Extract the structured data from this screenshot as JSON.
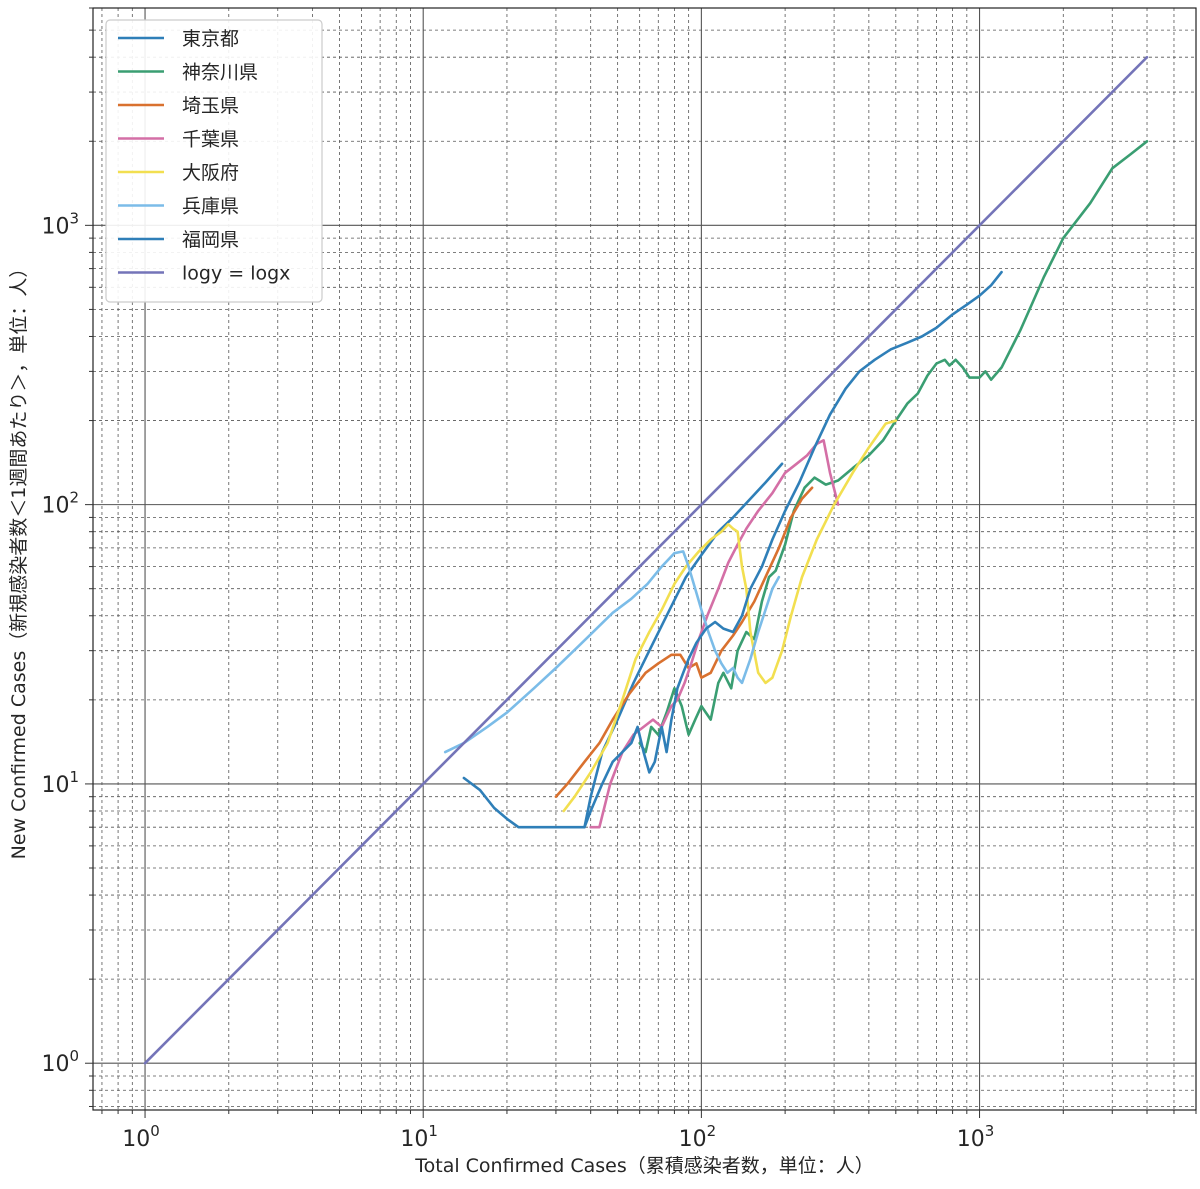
{
  "chart_data": {
    "type": "line",
    "title": "",
    "xlabel": "Total Confirmed Cases（累積感染者数，単位：人）",
    "ylabel": "New Confirmed Cases（新規感染者数＜1週間あたり＞，単位：人）",
    "xscale": "log",
    "yscale": "log",
    "xlim": [
      0.65,
      6000
    ],
    "ylim": [
      0.68,
      6000
    ],
    "grid": true,
    "legend_position": "upper-left",
    "x_ticks": [
      {
        "base": "10",
        "exp": "0",
        "value": 1
      },
      {
        "base": "10",
        "exp": "1",
        "value": 10
      },
      {
        "base": "10",
        "exp": "2",
        "value": 100
      },
      {
        "base": "10",
        "exp": "3",
        "value": 1000
      }
    ],
    "y_ticks": [
      {
        "base": "10",
        "exp": "0",
        "value": 1
      },
      {
        "base": "10",
        "exp": "1",
        "value": 10
      },
      {
        "base": "10",
        "exp": "2",
        "value": 100
      },
      {
        "base": "10",
        "exp": "3",
        "value": 1000
      }
    ],
    "series": [
      {
        "name": "東京都",
        "color": "#2f7fb8",
        "points": [
          [
            38,
            7
          ],
          [
            40,
            9
          ],
          [
            44,
            13
          ],
          [
            50,
            17
          ],
          [
            57,
            23
          ],
          [
            65,
            30
          ],
          [
            75,
            40
          ],
          [
            88,
            55
          ],
          [
            100,
            66
          ],
          [
            115,
            80
          ],
          [
            130,
            90
          ],
          [
            150,
            105
          ],
          [
            170,
            120
          ],
          [
            195,
            140
          ]
        ]
      },
      {
        "name": "神奈川県",
        "color": "#3a9e72",
        "points": [
          [
            60,
            14
          ],
          [
            63,
            13
          ],
          [
            66,
            16
          ],
          [
            70,
            15
          ],
          [
            75,
            18
          ],
          [
            80,
            22
          ],
          [
            85,
            19
          ],
          [
            90,
            15
          ],
          [
            95,
            17
          ],
          [
            100,
            19
          ],
          [
            108,
            17
          ],
          [
            115,
            23
          ],
          [
            120,
            25
          ],
          [
            128,
            22
          ],
          [
            135,
            30
          ],
          [
            145,
            35
          ],
          [
            155,
            33
          ],
          [
            165,
            45
          ],
          [
            175,
            55
          ],
          [
            185,
            58
          ],
          [
            200,
            72
          ],
          [
            215,
            95
          ],
          [
            235,
            115
          ],
          [
            255,
            125
          ],
          [
            280,
            118
          ],
          [
            310,
            122
          ],
          [
            350,
            135
          ],
          [
            400,
            150
          ],
          [
            450,
            170
          ],
          [
            500,
            200
          ],
          [
            550,
            230
          ],
          [
            600,
            250
          ],
          [
            650,
            290
          ],
          [
            700,
            320
          ],
          [
            750,
            330
          ],
          [
            780,
            315
          ],
          [
            820,
            330
          ],
          [
            870,
            310
          ],
          [
            920,
            285
          ],
          [
            1000,
            285
          ],
          [
            1050,
            300
          ],
          [
            1100,
            280
          ],
          [
            1200,
            310
          ],
          [
            1400,
            420
          ],
          [
            1700,
            650
          ],
          [
            2000,
            900
          ],
          [
            2500,
            1200
          ],
          [
            3000,
            1600
          ],
          [
            3500,
            1800
          ],
          [
            4000,
            2000
          ]
        ]
      },
      {
        "name": "埼玉県",
        "color": "#d9712f",
        "points": [
          [
            30,
            9
          ],
          [
            33,
            10
          ],
          [
            38,
            12
          ],
          [
            43,
            14
          ],
          [
            48,
            17
          ],
          [
            55,
            21
          ],
          [
            63,
            25
          ],
          [
            70,
            27
          ],
          [
            78,
            29
          ],
          [
            84,
            29
          ],
          [
            90,
            26
          ],
          [
            96,
            27
          ],
          [
            100,
            24
          ],
          [
            108,
            25
          ],
          [
            118,
            30
          ],
          [
            130,
            34
          ],
          [
            140,
            38
          ],
          [
            155,
            45
          ],
          [
            170,
            55
          ],
          [
            190,
            70
          ],
          [
            210,
            90
          ],
          [
            230,
            105
          ],
          [
            250,
            115
          ]
        ]
      },
      {
        "name": "千葉県",
        "color": "#d46fa6",
        "points": [
          [
            40,
            7
          ],
          [
            43,
            7
          ],
          [
            47,
            10
          ],
          [
            52,
            13
          ],
          [
            57,
            15
          ],
          [
            62,
            16
          ],
          [
            67,
            17
          ],
          [
            72,
            16
          ],
          [
            78,
            19
          ],
          [
            82,
            20
          ],
          [
            87,
            23
          ],
          [
            92,
            27
          ],
          [
            98,
            33
          ],
          [
            105,
            40
          ],
          [
            115,
            50
          ],
          [
            125,
            62
          ],
          [
            135,
            72
          ],
          [
            145,
            82
          ],
          [
            160,
            95
          ],
          [
            180,
            110
          ],
          [
            200,
            130
          ],
          [
            220,
            140
          ],
          [
            240,
            150
          ],
          [
            260,
            165
          ],
          [
            275,
            170
          ],
          [
            290,
            130
          ],
          [
            310,
            100
          ]
        ]
      },
      {
        "name": "大阪府",
        "color": "#f2df50",
        "points": [
          [
            32,
            8
          ],
          [
            35,
            9
          ],
          [
            40,
            11
          ],
          [
            46,
            14
          ],
          [
            52,
            20
          ],
          [
            58,
            28
          ],
          [
            65,
            35
          ],
          [
            72,
            42
          ],
          [
            80,
            52
          ],
          [
            88,
            60
          ],
          [
            98,
            68
          ],
          [
            108,
            75
          ],
          [
            118,
            80
          ],
          [
            125,
            85
          ],
          [
            130,
            82
          ],
          [
            135,
            80
          ],
          [
            140,
            60
          ],
          [
            145,
            50
          ],
          [
            150,
            35
          ],
          [
            160,
            25
          ],
          [
            170,
            23
          ],
          [
            180,
            24
          ],
          [
            195,
            30
          ],
          [
            210,
            40
          ],
          [
            230,
            55
          ],
          [
            260,
            75
          ],
          [
            300,
            100
          ],
          [
            350,
            130
          ],
          [
            400,
            160
          ],
          [
            460,
            195
          ],
          [
            500,
            200
          ]
        ]
      },
      {
        "name": "兵庫県",
        "color": "#7bbce8",
        "points": [
          [
            12,
            13
          ],
          [
            14,
            14
          ],
          [
            17,
            16
          ],
          [
            20,
            18
          ],
          [
            25,
            22
          ],
          [
            30,
            26
          ],
          [
            36,
            31
          ],
          [
            42,
            36
          ],
          [
            48,
            41
          ],
          [
            56,
            46
          ],
          [
            64,
            52
          ],
          [
            72,
            60
          ],
          [
            80,
            67
          ],
          [
            86,
            68
          ],
          [
            90,
            60
          ],
          [
            95,
            50
          ],
          [
            100,
            42
          ],
          [
            106,
            35
          ],
          [
            112,
            30
          ],
          [
            118,
            27
          ],
          [
            124,
            25
          ],
          [
            130,
            26
          ],
          [
            135,
            24
          ],
          [
            140,
            23
          ],
          [
            150,
            28
          ],
          [
            160,
            35
          ],
          [
            170,
            42
          ],
          [
            180,
            50
          ],
          [
            190,
            55
          ]
        ]
      },
      {
        "name": "福岡県",
        "color": "#2f7fb8",
        "points": [
          [
            14,
            10.5
          ],
          [
            16,
            9.5
          ],
          [
            18,
            8.2
          ],
          [
            20,
            7.5
          ],
          [
            22,
            7
          ],
          [
            25,
            7
          ],
          [
            30,
            7
          ],
          [
            35,
            7
          ],
          [
            38,
            7
          ],
          [
            40,
            8
          ],
          [
            44,
            10
          ],
          [
            48,
            12
          ],
          [
            52,
            13
          ],
          [
            56,
            14
          ],
          [
            59,
            16
          ],
          [
            62,
            13
          ],
          [
            65,
            11
          ],
          [
            68,
            12
          ],
          [
            72,
            16
          ],
          [
            75,
            13
          ],
          [
            78,
            17
          ],
          [
            82,
            22
          ],
          [
            86,
            25
          ],
          [
            90,
            28
          ],
          [
            96,
            32
          ],
          [
            104,
            36
          ],
          [
            112,
            38
          ],
          [
            120,
            36
          ],
          [
            130,
            35
          ],
          [
            140,
            40
          ],
          [
            150,
            50
          ],
          [
            165,
            60
          ],
          [
            180,
            75
          ],
          [
            200,
            95
          ],
          [
            225,
            120
          ],
          [
            255,
            160
          ],
          [
            290,
            210
          ],
          [
            330,
            260
          ],
          [
            370,
            300
          ],
          [
            420,
            330
          ],
          [
            480,
            360
          ],
          [
            550,
            380
          ],
          [
            620,
            400
          ],
          [
            700,
            430
          ],
          [
            800,
            480
          ],
          [
            900,
            520
          ],
          [
            1000,
            560
          ],
          [
            1100,
            610
          ],
          [
            1200,
            680
          ]
        ]
      }
    ],
    "reference_line": {
      "name": "logy = logx",
      "color": "#7474b8",
      "points": [
        [
          1,
          1
        ],
        [
          4000,
          4000
        ]
      ]
    }
  }
}
